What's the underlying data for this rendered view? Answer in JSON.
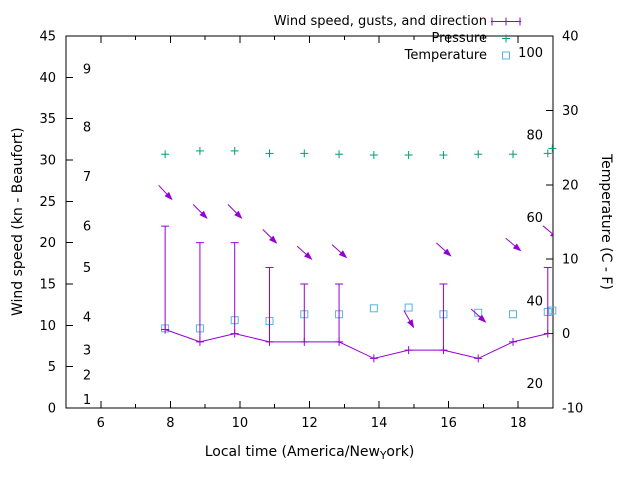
{
  "style": {
    "plot_background": "#ffffff",
    "axis_color": "#000000"
  },
  "legend": [
    {
      "label": "Wind speed, gusts, and direction",
      "marker": "errorbar-line",
      "color": "#9400d3"
    },
    {
      "label": "Pressure",
      "marker": "plus",
      "color": "#009e73"
    },
    {
      "label": "Temperature",
      "marker": "open-square",
      "color": "#56b4e9"
    }
  ],
  "axes": {
    "x": {
      "label_parts": {
        "prefix": "Local time (America/New",
        "subscript": "Y",
        "suffix": "ork)"
      },
      "range": [
        5,
        19
      ],
      "ticks": [
        6,
        8,
        10,
        12,
        14,
        16,
        18
      ],
      "minor_ticks": [
        7,
        9,
        11,
        13,
        15,
        17
      ]
    },
    "y_left": {
      "label": "Wind speed (kn - Beaufort)",
      "range": [
        0,
        45
      ],
      "ticks": [
        0,
        5,
        10,
        15,
        20,
        25,
        30,
        35,
        40,
        45
      ],
      "beaufort_labels": [
        {
          "text": "1",
          "kn": 1
        },
        {
          "text": "2",
          "kn": 4
        },
        {
          "text": "3",
          "kn": 7
        },
        {
          "text": "4",
          "kn": 11
        },
        {
          "text": "5",
          "kn": 17
        },
        {
          "text": "6",
          "kn": 22
        },
        {
          "text": "7",
          "kn": 28
        },
        {
          "text": "8",
          "kn": 34
        },
        {
          "text": "9",
          "kn": 41
        }
      ]
    },
    "y_right": {
      "label": "Temperature (C - F)",
      "range": [
        -10,
        40
      ],
      "ticks": [
        -10,
        0,
        10,
        20,
        30,
        40
      ],
      "fahrenheit_labels": [
        {
          "text": "20",
          "c": -6.7
        },
        {
          "text": "40",
          "c": 4.4
        },
        {
          "text": "60",
          "c": 15.6
        },
        {
          "text": "80",
          "c": 26.7
        },
        {
          "text": "100",
          "c": 37.8
        }
      ]
    }
  },
  "chart_data": {
    "type": "line",
    "x_unit": "hour (local time)",
    "x_hours": [
      7.85,
      8.85,
      9.85,
      10.85,
      11.85,
      12.85,
      13.85,
      14.85,
      15.85,
      16.85,
      17.85,
      18.85
    ],
    "series": [
      {
        "id": "wind",
        "name": "Wind speed (kn)",
        "color": "#9400d3",
        "axis": "left",
        "values": [
          9.5,
          8,
          9,
          8,
          8,
          8,
          6,
          7,
          7,
          6,
          8,
          9
        ]
      },
      {
        "id": "gust",
        "name": "Wind gusts (kn)",
        "color": "#9400d3",
        "axis": "left",
        "values": [
          22,
          20,
          20,
          17,
          15,
          15,
          6,
          7,
          15,
          6,
          8,
          17
        ]
      },
      {
        "id": "pressure",
        "name": "Pressure (inHg, plotted on left axis)",
        "color": "#009e73",
        "axis": "left",
        "values": [
          30.7,
          31.1,
          31.1,
          30.8,
          30.8,
          30.7,
          30.6,
          30.6,
          30.6,
          30.7,
          30.7,
          30.8
        ],
        "extra_points": [
          {
            "x": 18.98,
            "value": 31.4
          }
        ]
      },
      {
        "id": "temperature",
        "name": "Temperature (C)",
        "color": "#56b4e9",
        "axis": "right",
        "values": [
          0.7,
          0.7,
          1.8,
          1.7,
          2.6,
          2.6,
          3.4,
          3.5,
          2.6,
          2.8,
          2.6,
          2.9
        ],
        "extra_points": [
          {
            "x": 18.98,
            "value": 3.1
          }
        ]
      }
    ],
    "wind_direction_arrows": [
      {
        "x": 7.85,
        "y_kn": 26.1,
        "angle_deg": -47
      },
      {
        "x": 8.85,
        "y_kn": 23.8,
        "angle_deg": -45
      },
      {
        "x": 9.85,
        "y_kn": 23.8,
        "angle_deg": -45
      },
      {
        "x": 10.85,
        "y_kn": 20.8,
        "angle_deg": -45
      },
      {
        "x": 11.85,
        "y_kn": 18.8,
        "angle_deg": -42
      },
      {
        "x": 12.85,
        "y_kn": 19.0,
        "angle_deg": -42
      },
      {
        "x": 14.85,
        "y_kn": 10.8,
        "angle_deg": -60
      },
      {
        "x": 15.85,
        "y_kn": 19.2,
        "angle_deg": -42
      },
      {
        "x": 16.85,
        "y_kn": 11.2,
        "angle_deg": -42
      },
      {
        "x": 17.85,
        "y_kn": 19.8,
        "angle_deg": -40
      },
      {
        "x": 18.92,
        "y_kn": 21.3,
        "angle_deg": -40
      }
    ]
  }
}
